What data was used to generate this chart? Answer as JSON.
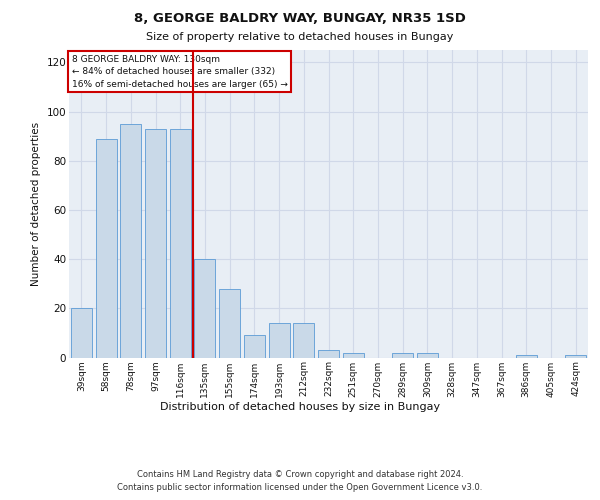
{
  "title": "8, GEORGE BALDRY WAY, BUNGAY, NR35 1SD",
  "subtitle": "Size of property relative to detached houses in Bungay",
  "xlabel": "Distribution of detached houses by size in Bungay",
  "ylabel": "Number of detached properties",
  "categories": [
    "39sqm",
    "58sqm",
    "78sqm",
    "97sqm",
    "116sqm",
    "135sqm",
    "155sqm",
    "174sqm",
    "193sqm",
    "212sqm",
    "232sqm",
    "251sqm",
    "270sqm",
    "289sqm",
    "309sqm",
    "328sqm",
    "347sqm",
    "367sqm",
    "386sqm",
    "405sqm",
    "424sqm"
  ],
  "values": [
    20,
    89,
    95,
    93,
    93,
    40,
    28,
    9,
    14,
    14,
    3,
    2,
    0,
    2,
    2,
    0,
    0,
    0,
    1,
    0,
    1
  ],
  "bar_color": "#c9d9e8",
  "bar_edge_color": "#5b9bd5",
  "vline_x": 4.5,
  "vline_color": "#cc0000",
  "annotation_line1": "8 GEORGE BALDRY WAY: 130sqm",
  "annotation_line2": "← 84% of detached houses are smaller (332)",
  "annotation_line3": "16% of semi-detached houses are larger (65) →",
  "box_color": "#cc0000",
  "ylim": [
    0,
    125
  ],
  "yticks": [
    0,
    20,
    40,
    60,
    80,
    100,
    120
  ],
  "grid_color": "#d0d8e8",
  "bg_color": "#e8eef5",
  "footer1": "Contains HM Land Registry data © Crown copyright and database right 2024.",
  "footer2": "Contains public sector information licensed under the Open Government Licence v3.0."
}
